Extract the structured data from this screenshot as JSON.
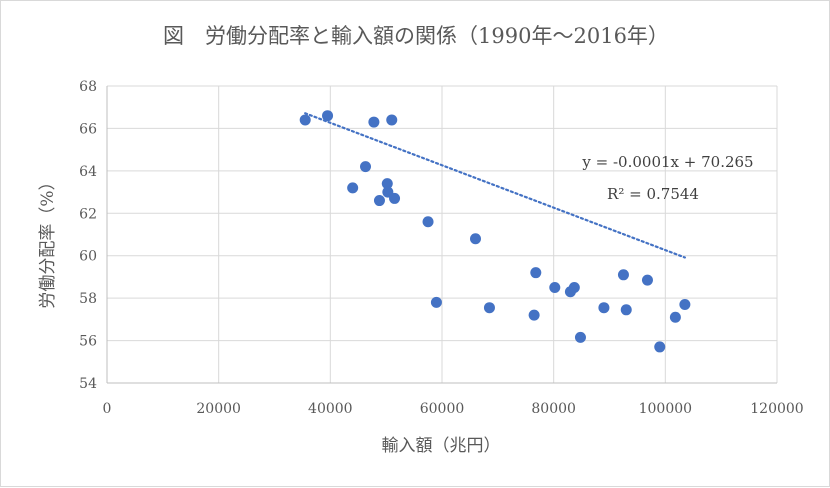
{
  "chart_data": {
    "type": "scatter",
    "title": "図　労働分配率と輸入額の関係（1990年〜2016年）",
    "xlabel": "輸入額（兆円）",
    "ylabel": "労働分配率（%）",
    "xlim": [
      0,
      120000
    ],
    "ylim": [
      54,
      68
    ],
    "x_ticks": [
      "0",
      "20000",
      "40000",
      "60000",
      "80000",
      "100000",
      "120000"
    ],
    "y_ticks": [
      "54",
      "56",
      "58",
      "60",
      "62",
      "64",
      "66",
      "68"
    ],
    "grid": true,
    "marker_color": "#4472c4",
    "trendline": {
      "type": "linear",
      "slope": -0.0001,
      "intercept": 70.265,
      "x_range": [
        35500,
        103500
      ],
      "style": "dotted",
      "equation": "y = -0.0001x + 70.265",
      "r_squared": "R² = 0.7544"
    },
    "points": [
      {
        "x": 35500,
        "y": 66.4
      },
      {
        "x": 39500,
        "y": 66.6
      },
      {
        "x": 47800,
        "y": 66.3
      },
      {
        "x": 51000,
        "y": 66.4
      },
      {
        "x": 46300,
        "y": 64.2
      },
      {
        "x": 44000,
        "y": 63.2
      },
      {
        "x": 50200,
        "y": 63.4
      },
      {
        "x": 50300,
        "y": 63.0
      },
      {
        "x": 48800,
        "y": 62.6
      },
      {
        "x": 51500,
        "y": 62.7
      },
      {
        "x": 57500,
        "y": 61.6
      },
      {
        "x": 66000,
        "y": 60.8
      },
      {
        "x": 59000,
        "y": 57.8
      },
      {
        "x": 68500,
        "y": 57.55
      },
      {
        "x": 76800,
        "y": 59.2
      },
      {
        "x": 76500,
        "y": 57.2
      },
      {
        "x": 80200,
        "y": 58.5
      },
      {
        "x": 83000,
        "y": 58.3
      },
      {
        "x": 83700,
        "y": 58.5
      },
      {
        "x": 84800,
        "y": 56.15
      },
      {
        "x": 89000,
        "y": 57.55
      },
      {
        "x": 92500,
        "y": 59.1
      },
      {
        "x": 93000,
        "y": 57.45
      },
      {
        "x": 96800,
        "y": 58.85
      },
      {
        "x": 99000,
        "y": 55.7
      },
      {
        "x": 101800,
        "y": 57.1
      },
      {
        "x": 103500,
        "y": 57.7
      }
    ]
  }
}
